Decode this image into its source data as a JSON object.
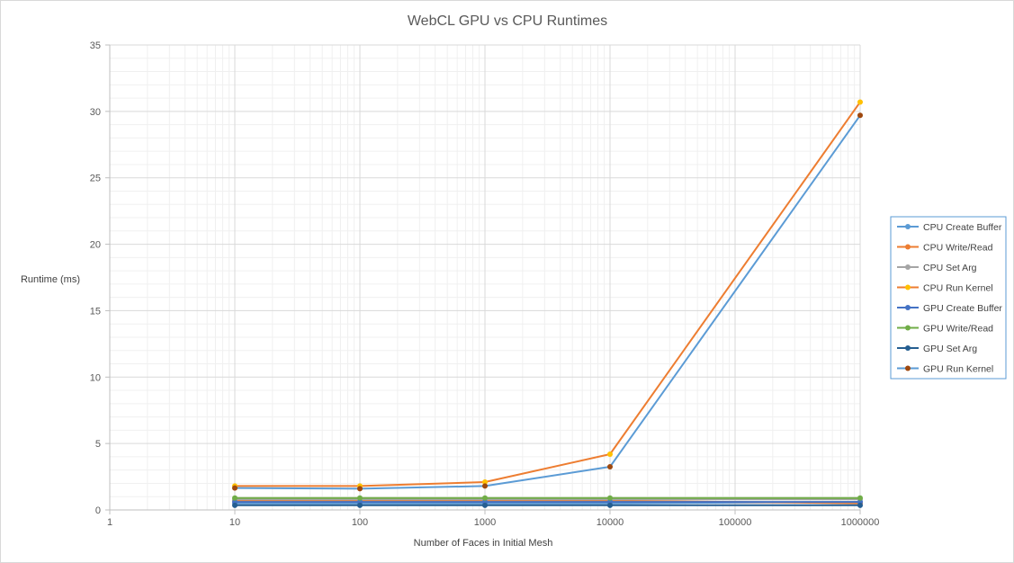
{
  "chart_data": {
    "type": "line",
    "title": "WebCL GPU vs CPU Runtimes",
    "xlabel": "Number  of Faces in Initial Mesh",
    "ylabel": "Runtime  (ms)",
    "x_scale": "log",
    "x_ticks": [
      "1",
      "10",
      "100",
      "1000",
      "10000",
      "100000",
      "1000000"
    ],
    "y_ticks": [
      "0",
      "5",
      "10",
      "15",
      "20",
      "25",
      "30",
      "35"
    ],
    "xlim": [
      1,
      1000000
    ],
    "ylim": [
      0,
      35
    ],
    "x": [
      10,
      100,
      1000,
      10000,
      1000000
    ],
    "grid": true,
    "legend_position": "right",
    "series": [
      {
        "name": "CPU Create Buffer",
        "color": "#5b9bd5",
        "values": [
          0.5,
          0.5,
          0.5,
          0.5,
          0.6
        ]
      },
      {
        "name": "CPU Write/Read",
        "color": "#ed7d31",
        "values": [
          0.7,
          0.7,
          0.7,
          0.7,
          0.5
        ]
      },
      {
        "name": "CPU Set Arg",
        "color": "#a5a5a5",
        "values": [
          0.8,
          0.8,
          0.8,
          0.8,
          0.8
        ]
      },
      {
        "name": "CPU Run Kernel",
        "color": "#ffc000",
        "values": [
          1.8,
          1.8,
          2.1,
          4.2,
          30.7
        ]
      },
      {
        "name": "GPU Create Buffer",
        "color": "#4472c4",
        "values": [
          0.6,
          0.6,
          0.6,
          0.6,
          0.6
        ]
      },
      {
        "name": "GPU Write/Read",
        "color": "#70ad47",
        "values": [
          0.9,
          0.9,
          0.9,
          0.9,
          0.9
        ]
      },
      {
        "name": "GPU Set Arg",
        "color": "#255e91",
        "values": [
          0.35,
          0.35,
          0.35,
          0.35,
          0.35
        ]
      },
      {
        "name": "GPU Run Kernel",
        "color": "#9e480e",
        "values": [
          1.65,
          1.6,
          1.8,
          3.25,
          29.7
        ]
      }
    ],
    "line_overrides": {
      "CPU Run Kernel": "#ed7d31",
      "GPU Run Kernel": "#5b9bd5"
    }
  }
}
